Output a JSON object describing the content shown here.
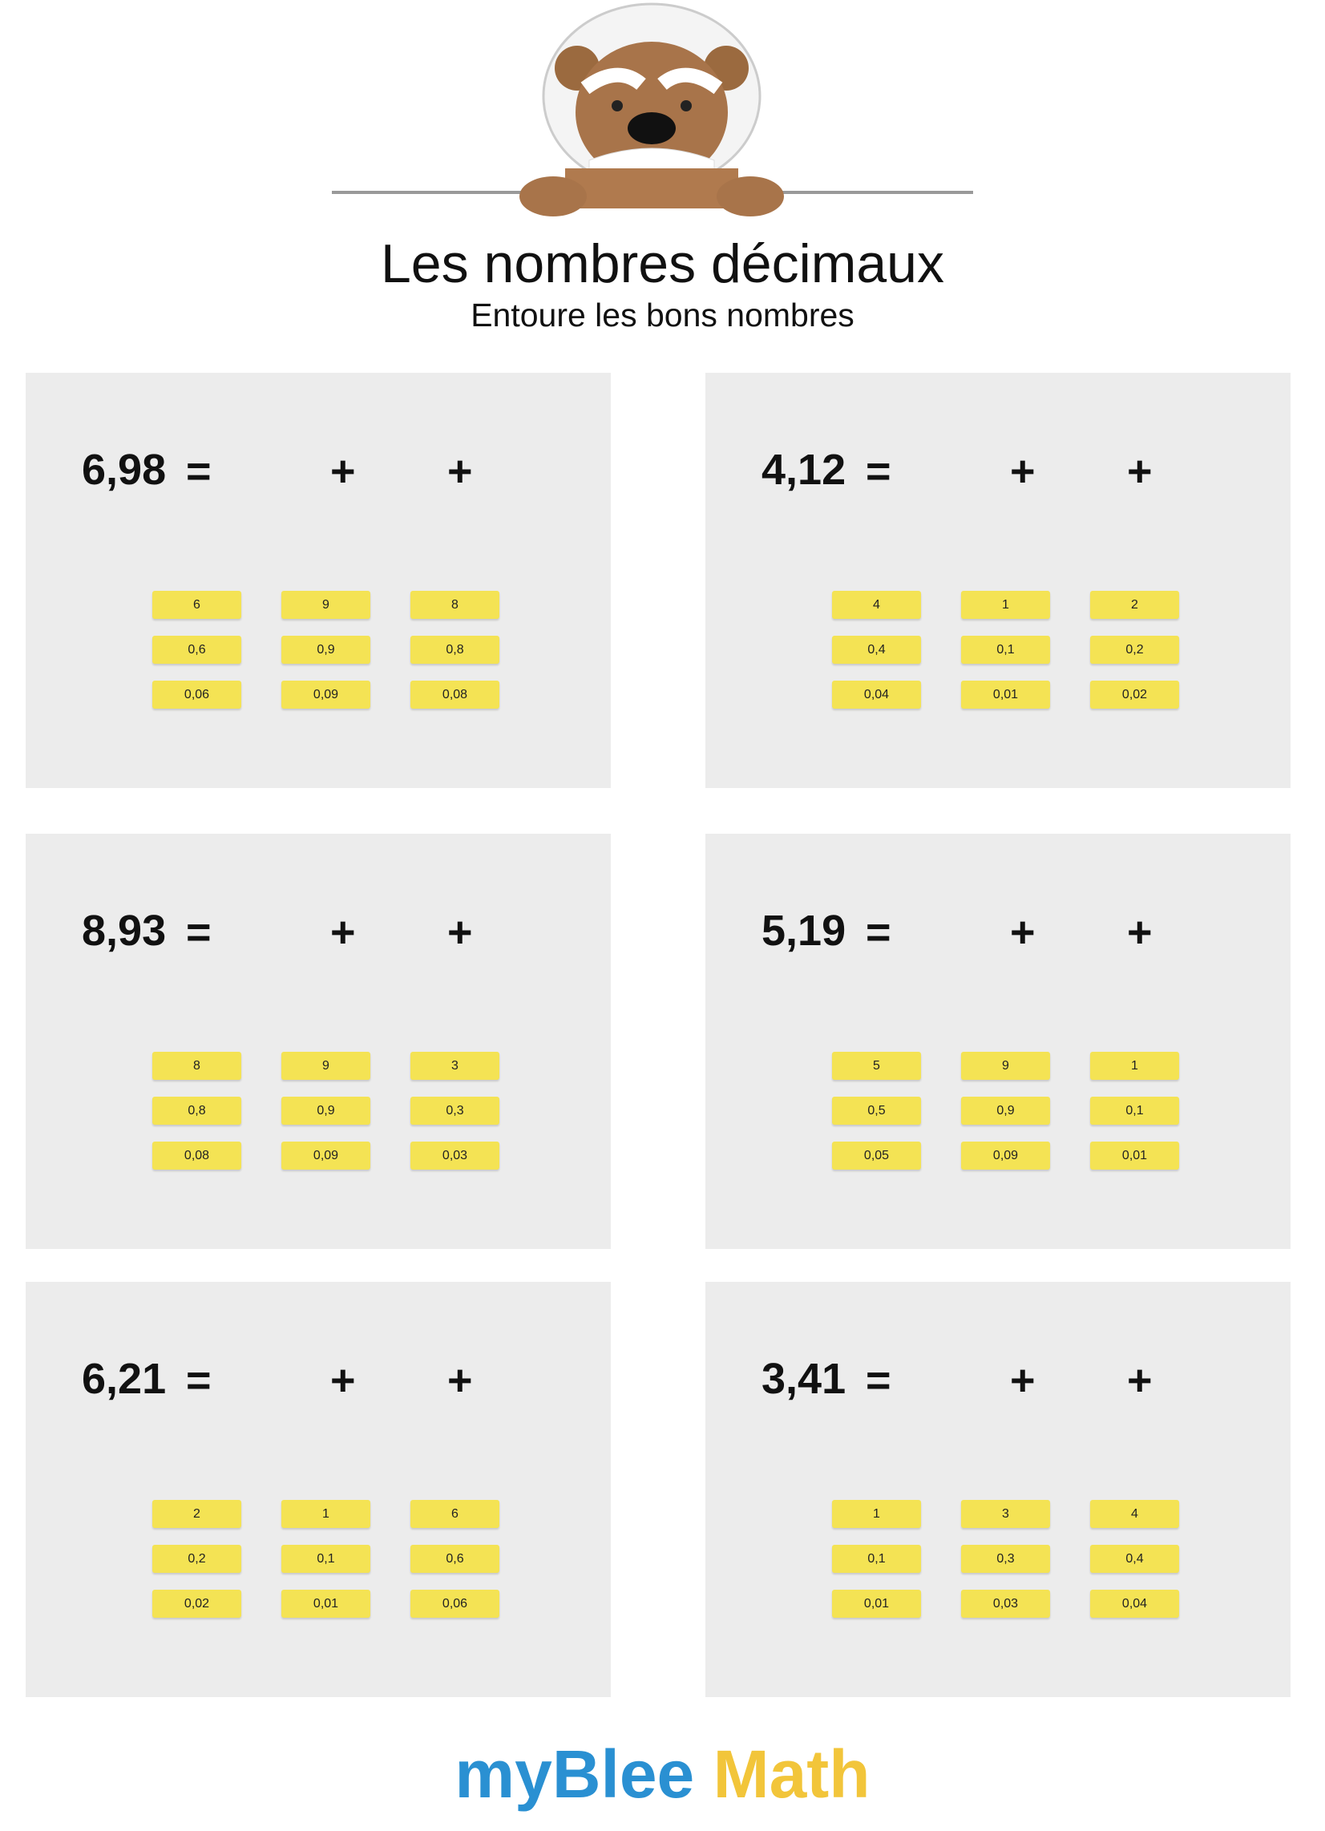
{
  "header": {
    "title": "Les nombres décimaux",
    "subtitle": "Entoure les bons nombres"
  },
  "operators": {
    "equals": "=",
    "plus": "+"
  },
  "exercises": [
    {
      "number": "6,98",
      "columns": [
        [
          "6",
          "0,6",
          "0,06"
        ],
        [
          "9",
          "0,9",
          "0,09"
        ],
        [
          "8",
          "0,8",
          "0,08"
        ]
      ]
    },
    {
      "number": "4,12",
      "columns": [
        [
          "4",
          "0,4",
          "0,04"
        ],
        [
          "1",
          "0,1",
          "0,01"
        ],
        [
          "2",
          "0,2",
          "0,02"
        ]
      ]
    },
    {
      "number": "8,93",
      "columns": [
        [
          "8",
          "0,8",
          "0,08"
        ],
        [
          "9",
          "0,9",
          "0,09"
        ],
        [
          "3",
          "0,3",
          "0,03"
        ]
      ]
    },
    {
      "number": "5,19",
      "columns": [
        [
          "5",
          "0,5",
          "0,05"
        ],
        [
          "9",
          "0,9",
          "0,09"
        ],
        [
          "1",
          "0,1",
          "0,01"
        ]
      ]
    },
    {
      "number": "6,21",
      "columns": [
        [
          "2",
          "0,2",
          "0,02"
        ],
        [
          "1",
          "0,1",
          "0,01"
        ],
        [
          "6",
          "0,6",
          "0,06"
        ]
      ]
    },
    {
      "number": "3,41",
      "columns": [
        [
          "1",
          "0,1",
          "0,01"
        ],
        [
          "3",
          "0,3",
          "0,03"
        ],
        [
          "4",
          "0,4",
          "0,04"
        ]
      ]
    }
  ],
  "footer": {
    "brand": "myBlee",
    "product": "Math"
  }
}
